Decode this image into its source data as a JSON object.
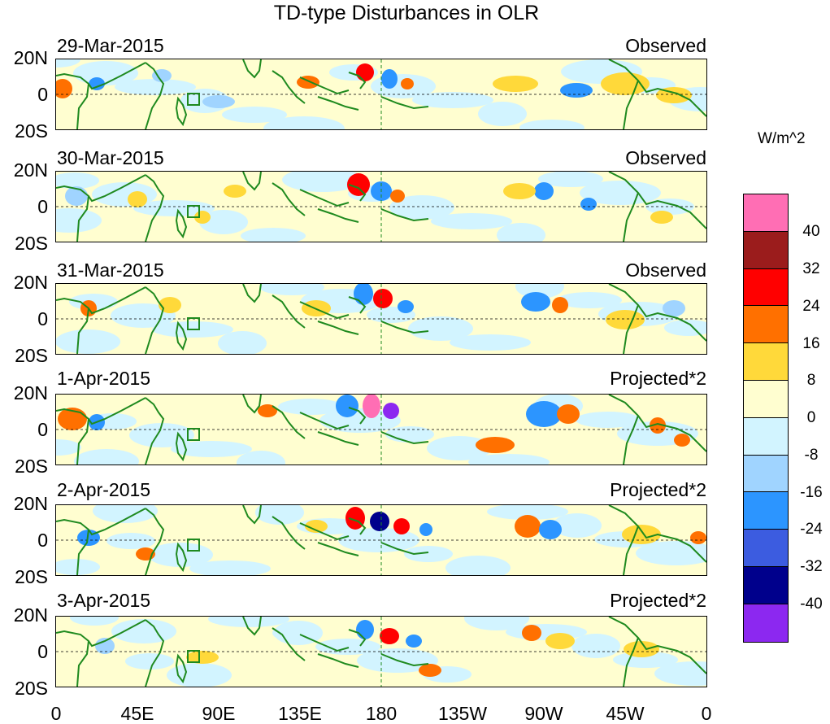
{
  "title": "TD-type Disturbances in OLR",
  "panels": [
    {
      "date": "29-Mar-2015",
      "label": "Observed"
    },
    {
      "date": "30-Mar-2015",
      "label": "Observed"
    },
    {
      "date": "31-Mar-2015",
      "label": "Observed"
    },
    {
      "date": "1-Apr-2015",
      "label": "Projected*2"
    },
    {
      "date": "2-Apr-2015",
      "label": "Projected*2"
    },
    {
      "date": "3-Apr-2015",
      "label": "Projected*2"
    }
  ],
  "lat_ticks": [
    "20N",
    "0",
    "20S"
  ],
  "lon_ticks": [
    "0",
    "45E",
    "90E",
    "135E",
    "180",
    "135W",
    "90W",
    "45W",
    "0"
  ],
  "colorbar": {
    "units": "W/m^2",
    "labels": [
      "40",
      "32",
      "24",
      "16",
      "8",
      "0",
      "-8",
      "-16",
      "-24",
      "-32",
      "-40"
    ],
    "colors": [
      "#ff6eb4",
      "#9b1c1c",
      "#ff0000",
      "#ff7000",
      "#ffd93a",
      "#fffed0",
      "#d2f4ff",
      "#a0d4ff",
      "#2c95ff",
      "#3c5ce0",
      "#00008c",
      "#8c28f0"
    ]
  },
  "map_colors": {
    "coast": "#1f8a1f",
    "dateline": "#1f8a1f",
    "box": "#1f8a1f"
  }
}
